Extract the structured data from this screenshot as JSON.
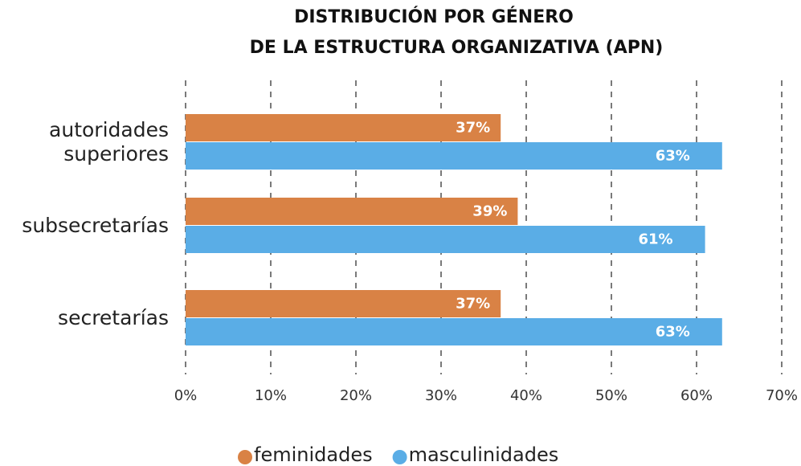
{
  "chart_data": {
    "type": "bar",
    "orientation": "horizontal",
    "title": [
      "DISTRIBUCIÓN POR GÉNERO",
      "DE LA ESTRUCTURA ORGANIZATIVA (APN)"
    ],
    "categories": [
      "autoridades superiores",
      "subsecretarías",
      "secretarías"
    ],
    "series": [
      {
        "name": "feminidades",
        "color": "#d98245",
        "values": [
          37,
          39,
          37
        ],
        "value_labels": [
          "37%",
          "39%",
          "37%"
        ]
      },
      {
        "name": "masculinidades",
        "color": "#5aade6",
        "values": [
          63,
          61,
          63
        ],
        "value_labels": [
          "63%",
          "61%",
          "63%"
        ]
      }
    ],
    "xlim": [
      0,
      70
    ],
    "xticks": [
      {
        "value": 0,
        "label": "0%"
      },
      {
        "value": 10,
        "label": "10%"
      },
      {
        "value": 20,
        "label": "20%"
      },
      {
        "value": 30,
        "label": "30%"
      },
      {
        "value": 40,
        "label": "40%"
      },
      {
        "value": 50,
        "label": "50%"
      },
      {
        "value": 60,
        "label": "60%"
      },
      {
        "value": 70,
        "label": "70%"
      }
    ],
    "grid": true,
    "legend": "bottom"
  }
}
